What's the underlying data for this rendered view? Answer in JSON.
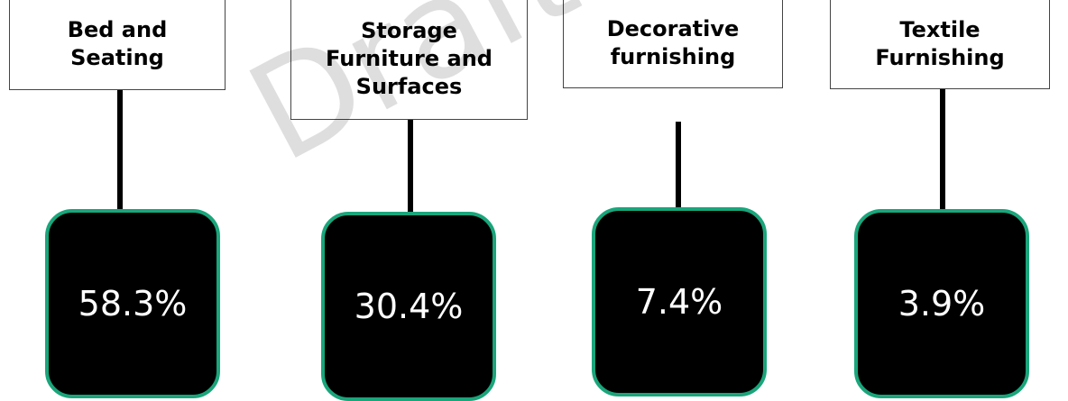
{
  "watermark": "Draft of th",
  "nodes": [
    {
      "label": "Bed and Seating",
      "value": "58.3%"
    },
    {
      "label": "Storage Furniture and Surfaces",
      "value": "30.4%"
    },
    {
      "label": "Decorative furnishing",
      "value": "7.4%"
    },
    {
      "label": "Textile Furnishing",
      "value": "3.9%"
    }
  ]
}
